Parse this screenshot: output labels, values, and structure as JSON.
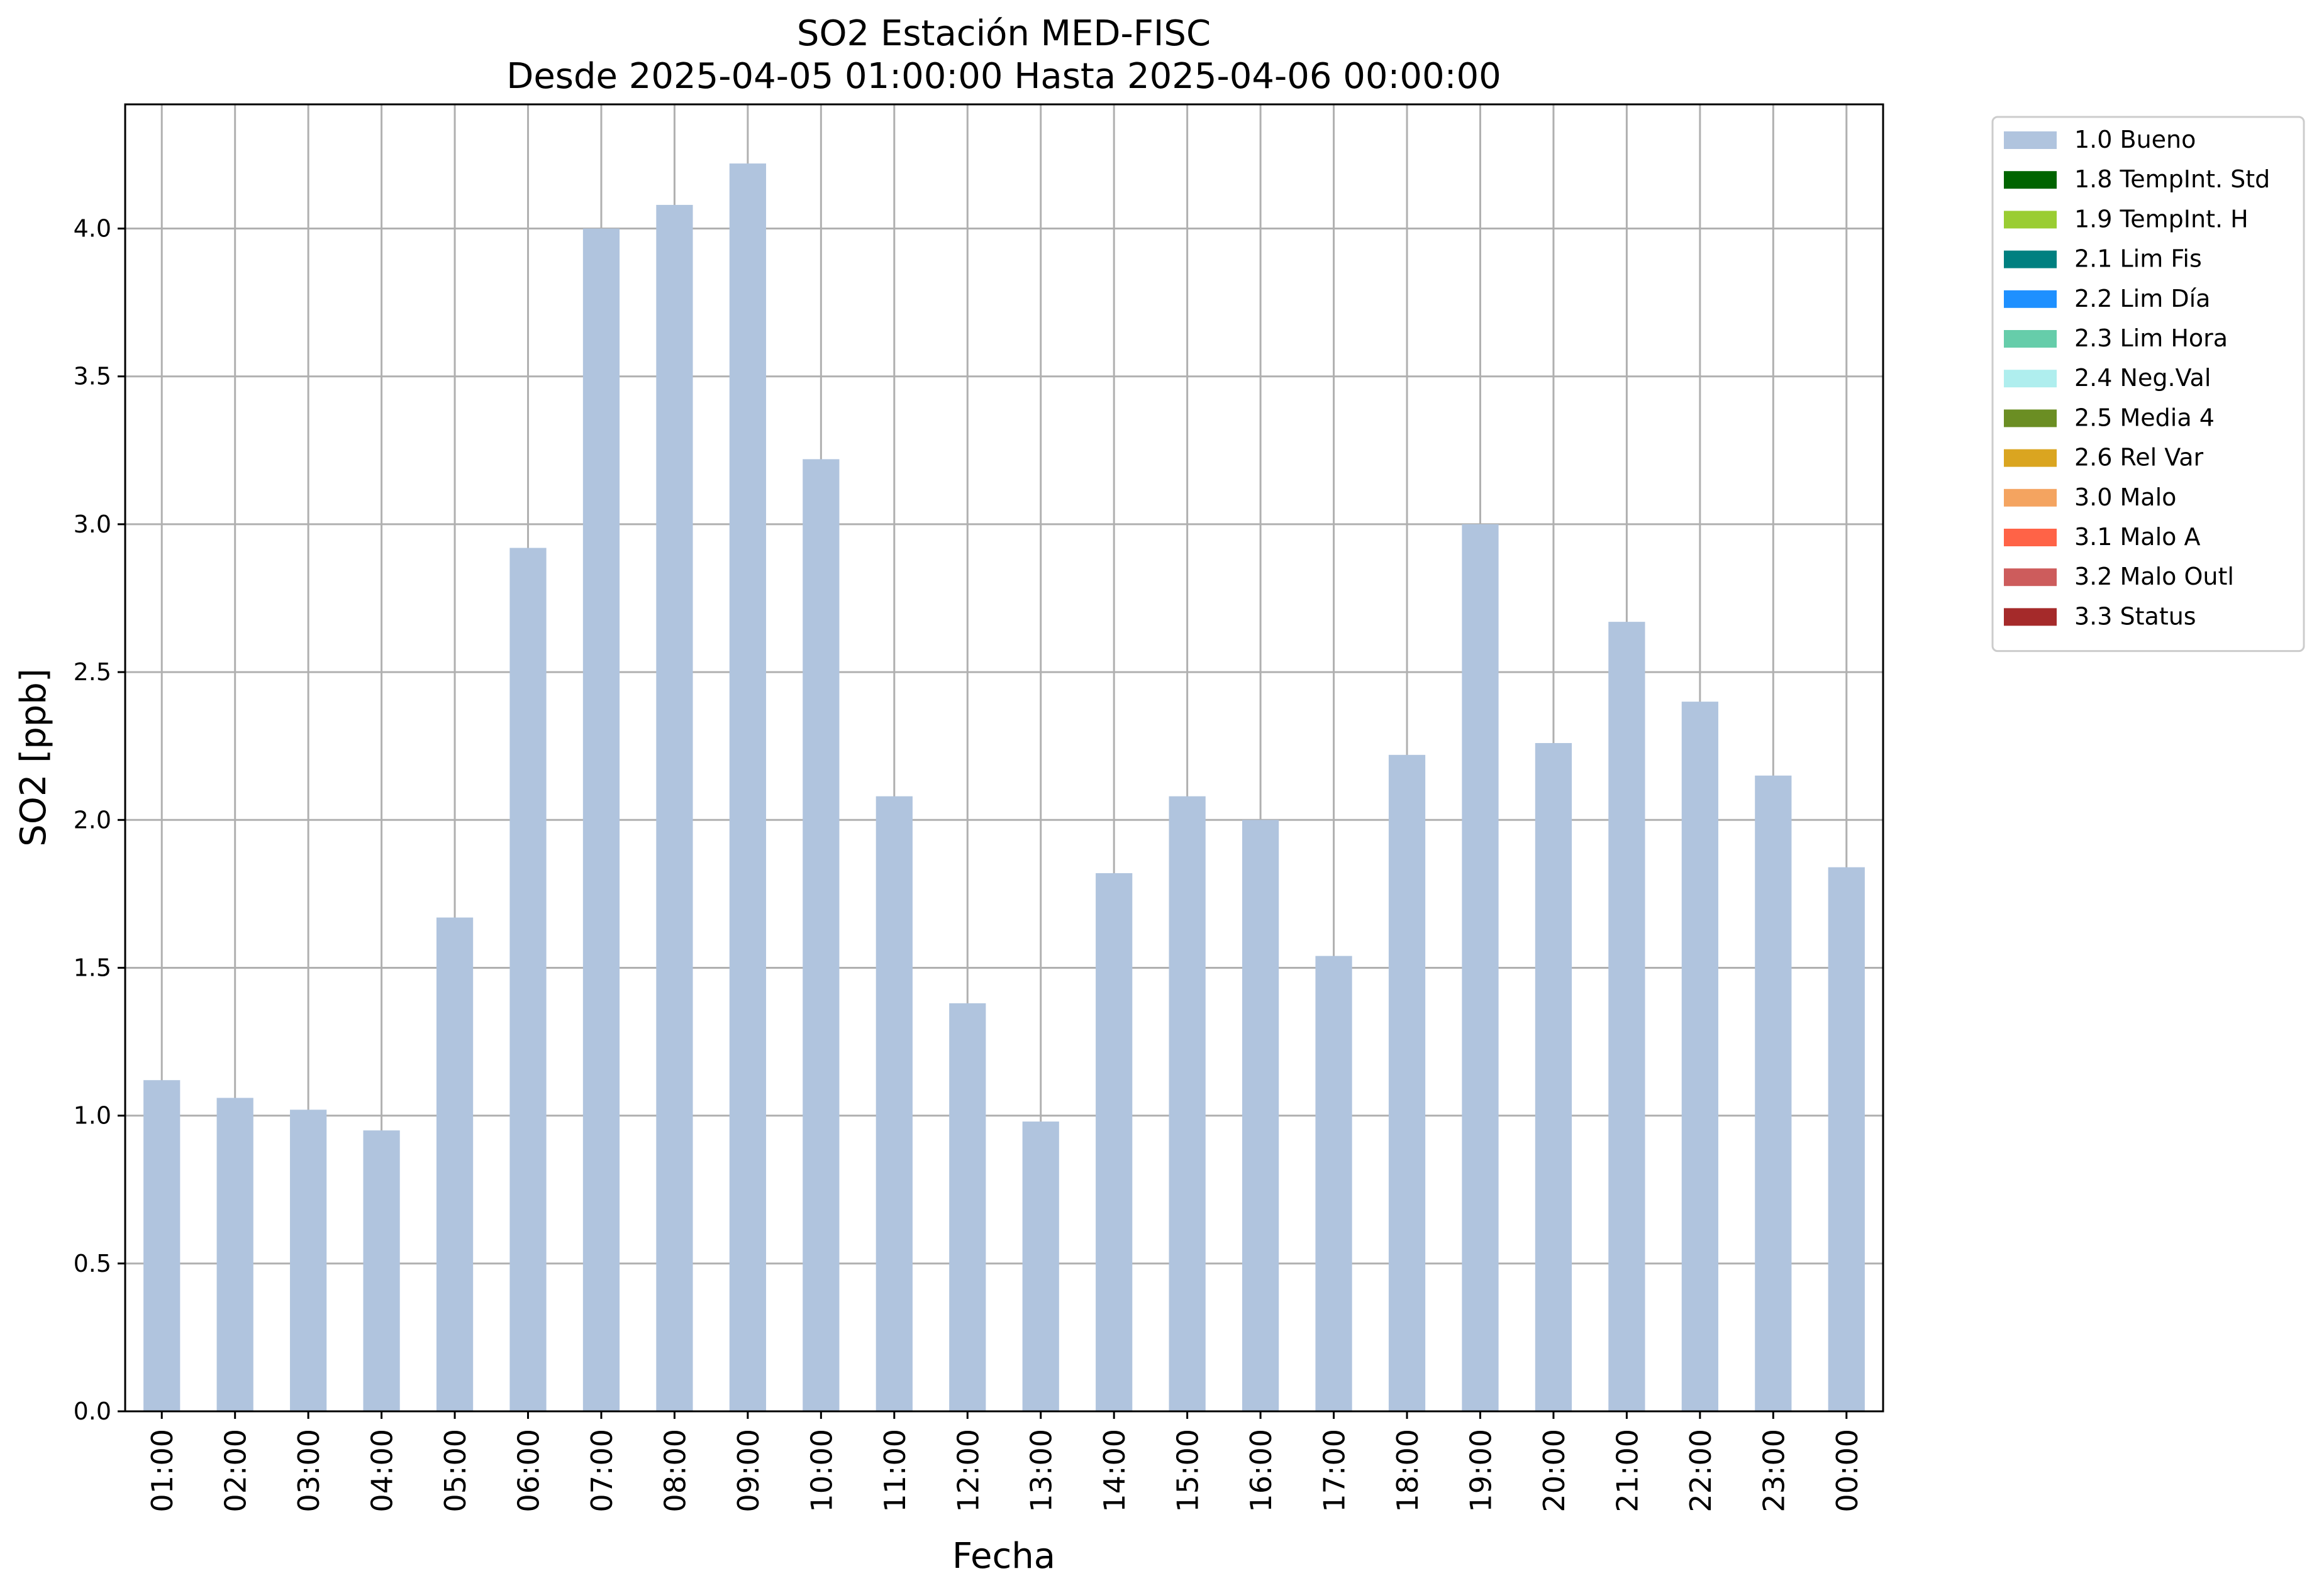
{
  "chart_data": {
    "type": "bar",
    "title": "SO2 Estación MED-FISC",
    "subtitle": "Desde 2025-04-05 01:00:00 Hasta 2025-04-06 00:00:00",
    "xlabel": "Fecha",
    "ylabel": "SO2 [ppb]",
    "ylim": [
      0,
      4.42
    ],
    "yticks": [
      "0.0",
      "0.5",
      "1.0",
      "1.5",
      "2.0",
      "2.5",
      "3.0",
      "3.5",
      "4.0"
    ],
    "grid": true,
    "legend_position": "outside top-right",
    "categories": [
      "01:00",
      "02:00",
      "03:00",
      "04:00",
      "05:00",
      "06:00",
      "07:00",
      "08:00",
      "09:00",
      "10:00",
      "11:00",
      "12:00",
      "13:00",
      "14:00",
      "15:00",
      "16:00",
      "17:00",
      "18:00",
      "19:00",
      "20:00",
      "21:00",
      "22:00",
      "23:00",
      "00:00"
    ],
    "series": [
      {
        "name": "1.0 Bueno",
        "color": "#b0c4de",
        "values": [
          1.12,
          1.06,
          1.02,
          0.95,
          1.67,
          2.92,
          4.0,
          4.08,
          4.22,
          3.22,
          2.08,
          1.38,
          0.98,
          1.82,
          2.08,
          2.0,
          1.54,
          2.22,
          3.0,
          2.26,
          2.67,
          2.4,
          2.15,
          1.84
        ]
      }
    ],
    "legend": [
      {
        "label": "1.0 Bueno",
        "color": "#b0c4de"
      },
      {
        "label": "1.8 TempInt. Std",
        "color": "#006400"
      },
      {
        "label": "1.9 TempInt. H",
        "color": "#9acd32"
      },
      {
        "label": "2.1 Lim Fis",
        "color": "#008080"
      },
      {
        "label": "2.2 Lim Día",
        "color": "#1e90ff"
      },
      {
        "label": "2.3 Lim Hora",
        "color": "#66cdaa"
      },
      {
        "label": "2.4 Neg.Val",
        "color": "#afeeee"
      },
      {
        "label": "2.5 Media 4",
        "color": "#6b8e23"
      },
      {
        "label": "2.6 Rel Var",
        "color": "#daa520"
      },
      {
        "label": "3.0 Malo",
        "color": "#f4a460"
      },
      {
        "label": "3.1 Malo A",
        "color": "#ff6347"
      },
      {
        "label": "3.2 Malo Outl",
        "color": "#cd5c5c"
      },
      {
        "label": "3.3 Status",
        "color": "#a52a2a"
      }
    ]
  }
}
